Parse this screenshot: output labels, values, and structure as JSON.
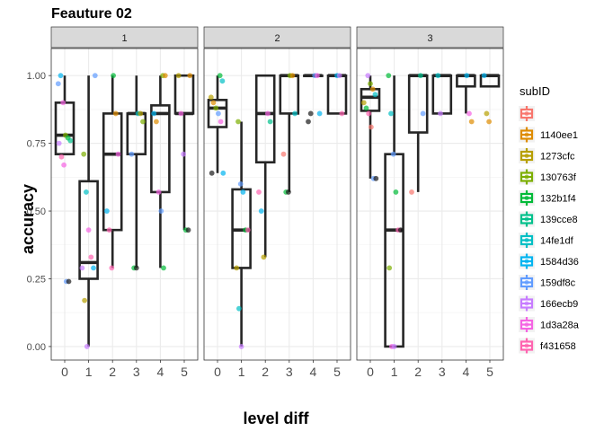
{
  "chart_data": {
    "type": "box",
    "title": "Feauture 02",
    "xlabel": "level diff",
    "ylabel": "accuracy",
    "x_ticks": [
      "0",
      "1",
      "2",
      "3",
      "4",
      "5"
    ],
    "y_ticks": [
      "0.00",
      "0.25",
      "0.50",
      "0.75",
      "1.00"
    ],
    "ylim": [
      -0.05,
      1.1
    ],
    "grid": true,
    "legend_title": "subID",
    "legend_position": "right",
    "legend": [
      {
        "name": "",
        "color": "#F8766D"
      },
      {
        "name": "1140ee1",
        "color": "#DE8C00"
      },
      {
        "name": "1273cfc",
        "color": "#B79F00"
      },
      {
        "name": "130763f",
        "color": "#7CAE00"
      },
      {
        "name": "132b1f4",
        "color": "#00BA38"
      },
      {
        "name": "139cce8",
        "color": "#00C08B"
      },
      {
        "name": "14fe1df",
        "color": "#00BFC4"
      },
      {
        "name": "1584d36",
        "color": "#00B4F0"
      },
      {
        "name": "159df8c",
        "color": "#619CFF"
      },
      {
        "name": "166ecb9",
        "color": "#C77CFF"
      },
      {
        "name": "1d3a28a",
        "color": "#F564E3"
      },
      {
        "name": "f431658",
        "color": "#FF64B0"
      }
    ],
    "facets": [
      {
        "label": "1",
        "boxes": [
          {
            "x": 0,
            "min": 0.71,
            "q1": 0.71,
            "median": 0.78,
            "q3": 0.9,
            "max": 1.0
          },
          {
            "x": 1,
            "min": 0.0,
            "q1": 0.25,
            "median": 0.31,
            "q3": 0.61,
            "max": 1.0
          },
          {
            "x": 2,
            "min": 0.29,
            "q1": 0.43,
            "median": 0.71,
            "q3": 0.86,
            "max": 1.0
          },
          {
            "x": 3,
            "min": 0.29,
            "q1": 0.71,
            "median": 0.86,
            "q3": 0.86,
            "max": 1.0
          },
          {
            "x": 4,
            "min": 0.29,
            "q1": 0.57,
            "median": 0.86,
            "q3": 0.89,
            "max": 1.0
          },
          {
            "x": 5,
            "min": 0.43,
            "q1": 0.86,
            "median": 0.86,
            "q3": 1.0,
            "max": 1.0
          }
        ],
        "points": [
          {
            "x": 0,
            "y": 0.97,
            "c": 8
          },
          {
            "x": 0,
            "y": 1.0,
            "c": 7
          },
          {
            "x": 0,
            "y": 0.9,
            "c": 10
          },
          {
            "x": 0,
            "y": 0.78,
            "c": 3
          },
          {
            "x": 0,
            "y": 0.77,
            "c": 4
          },
          {
            "x": 0,
            "y": 0.76,
            "c": 5
          },
          {
            "x": 0,
            "y": 0.75,
            "c": 9
          },
          {
            "x": 0,
            "y": 0.7,
            "c": 11
          },
          {
            "x": 0,
            "y": 0.67,
            "c": 10
          },
          {
            "x": 0,
            "y": 0.24,
            "c": 8
          },
          {
            "x": 0,
            "y": 0.24,
            "c": -1
          },
          {
            "x": 1,
            "y": 1.0,
            "c": 8
          },
          {
            "x": 1,
            "y": 0.71,
            "c": 3
          },
          {
            "x": 1,
            "y": 0.57,
            "c": 6
          },
          {
            "x": 1,
            "y": 0.43,
            "c": 10
          },
          {
            "x": 1,
            "y": 0.33,
            "c": 11
          },
          {
            "x": 1,
            "y": 0.29,
            "c": 7
          },
          {
            "x": 1,
            "y": 0.29,
            "c": 9
          },
          {
            "x": 1,
            "y": 0.17,
            "c": 2
          },
          {
            "x": 1,
            "y": 0.0,
            "c": 9
          },
          {
            "x": 2,
            "y": 1.0,
            "c": 4
          },
          {
            "x": 2,
            "y": 0.86,
            "c": 1
          },
          {
            "x": 2,
            "y": 0.71,
            "c": 10
          },
          {
            "x": 2,
            "y": 0.5,
            "c": 7
          },
          {
            "x": 2,
            "y": 0.43,
            "c": 11
          },
          {
            "x": 2,
            "y": 0.29,
            "c": 11
          },
          {
            "x": 3,
            "y": 0.86,
            "c": 6
          },
          {
            "x": 3,
            "y": 0.86,
            "c": 2
          },
          {
            "x": 3,
            "y": 0.83,
            "c": 3
          },
          {
            "x": 3,
            "y": 0.71,
            "c": 8
          },
          {
            "x": 3,
            "y": 0.29,
            "c": 4
          },
          {
            "x": 3,
            "y": 0.29,
            "c": -1
          },
          {
            "x": 4,
            "y": 1.0,
            "c": 3
          },
          {
            "x": 4,
            "y": 1.0,
            "c": 1
          },
          {
            "x": 4,
            "y": 0.86,
            "c": 7
          },
          {
            "x": 4,
            "y": 0.83,
            "c": 1
          },
          {
            "x": 4,
            "y": 0.57,
            "c": 10
          },
          {
            "x": 4,
            "y": 0.5,
            "c": 8
          },
          {
            "x": 4,
            "y": 0.29,
            "c": 4
          },
          {
            "x": 5,
            "y": 1.0,
            "c": 1
          },
          {
            "x": 5,
            "y": 1.0,
            "c": 2
          },
          {
            "x": 5,
            "y": 0.86,
            "c": 10
          },
          {
            "x": 5,
            "y": 0.71,
            "c": 9
          },
          {
            "x": 5,
            "y": 0.43,
            "c": 4
          },
          {
            "x": 5,
            "y": 0.43,
            "c": -1
          }
        ]
      },
      {
        "label": "2",
        "boxes": [
          {
            "x": 0,
            "min": 0.64,
            "q1": 0.81,
            "median": 0.88,
            "q3": 0.91,
            "max": 1.0
          },
          {
            "x": 1,
            "min": 0.0,
            "q1": 0.29,
            "median": 0.43,
            "q3": 0.58,
            "max": 0.83
          },
          {
            "x": 2,
            "min": 0.33,
            "q1": 0.68,
            "median": 0.86,
            "q3": 1.0,
            "max": 1.0
          },
          {
            "x": 3,
            "min": 0.57,
            "q1": 0.86,
            "median": 1.0,
            "q3": 1.0,
            "max": 1.0
          },
          {
            "x": 4,
            "min": 1.0,
            "q1": 1.0,
            "median": 1.0,
            "q3": 1.0,
            "max": 1.0
          },
          {
            "x": 5,
            "min": 0.86,
            "q1": 0.86,
            "median": 1.0,
            "q3": 1.0,
            "max": 1.0
          }
        ],
        "points": [
          {
            "x": 0,
            "y": 1.0,
            "c": 4
          },
          {
            "x": 0,
            "y": 0.98,
            "c": 6
          },
          {
            "x": 0,
            "y": 0.92,
            "c": 2
          },
          {
            "x": 0,
            "y": 0.9,
            "c": 1
          },
          {
            "x": 0,
            "y": 0.88,
            "c": 3
          },
          {
            "x": 0,
            "y": 0.86,
            "c": 8
          },
          {
            "x": 0,
            "y": 0.83,
            "c": 10
          },
          {
            "x": 0,
            "y": 0.64,
            "c": 7
          },
          {
            "x": 0,
            "y": 0.64,
            "c": -1
          },
          {
            "x": 1,
            "y": 0.83,
            "c": 3
          },
          {
            "x": 1,
            "y": 0.6,
            "c": 8
          },
          {
            "x": 1,
            "y": 0.57,
            "c": 7
          },
          {
            "x": 1,
            "y": 0.43,
            "c": 4
          },
          {
            "x": 1,
            "y": 0.43,
            "c": 11
          },
          {
            "x": 1,
            "y": 0.29,
            "c": 2
          },
          {
            "x": 1,
            "y": 0.14,
            "c": 6
          },
          {
            "x": 1,
            "y": 0.0,
            "c": 9
          },
          {
            "x": 2,
            "y": 0.86,
            "c": 10
          },
          {
            "x": 2,
            "y": 0.83,
            "c": 5
          },
          {
            "x": 2,
            "y": 0.57,
            "c": 11
          },
          {
            "x": 2,
            "y": 0.5,
            "c": 7
          },
          {
            "x": 2,
            "y": 0.33,
            "c": 2
          },
          {
            "x": 3,
            "y": 1.0,
            "c": 3
          },
          {
            "x": 3,
            "y": 1.0,
            "c": 1
          },
          {
            "x": 3,
            "y": 0.86,
            "c": 6
          },
          {
            "x": 3,
            "y": 0.71,
            "c": 0
          },
          {
            "x": 3,
            "y": 0.57,
            "c": 4
          },
          {
            "x": 3,
            "y": 0.57,
            "c": -1
          },
          {
            "x": 4,
            "y": 1.0,
            "c": 8
          },
          {
            "x": 4,
            "y": 1.0,
            "c": 10
          },
          {
            "x": 4,
            "y": 0.86,
            "c": 7
          },
          {
            "x": 4,
            "y": 0.83,
            "c": -1
          },
          {
            "x": 4,
            "y": 0.86,
            "c": -1
          },
          {
            "x": 5,
            "y": 1.0,
            "c": 7
          },
          {
            "x": 5,
            "y": 1.0,
            "c": 9
          },
          {
            "x": 5,
            "y": 0.86,
            "c": 11
          }
        ]
      },
      {
        "label": "3",
        "boxes": [
          {
            "x": 0,
            "min": 0.62,
            "q1": 0.87,
            "median": 0.92,
            "q3": 0.95,
            "max": 1.0
          },
          {
            "x": 1,
            "min": 0.0,
            "q1": 0.0,
            "median": 0.43,
            "q3": 0.71,
            "max": 1.0
          },
          {
            "x": 2,
            "min": 0.57,
            "q1": 0.79,
            "median": 1.0,
            "q3": 1.0,
            "max": 1.0
          },
          {
            "x": 3,
            "min": 0.86,
            "q1": 0.86,
            "median": 1.0,
            "q3": 1.0,
            "max": 1.0
          },
          {
            "x": 4,
            "min": 0.86,
            "q1": 0.96,
            "median": 1.0,
            "q3": 1.0,
            "max": 1.0
          },
          {
            "x": 5,
            "min": 0.96,
            "q1": 0.96,
            "median": 1.0,
            "q3": 1.0,
            "max": 1.0
          }
        ],
        "points": [
          {
            "x": 0,
            "y": 1.0,
            "c": 9
          },
          {
            "x": 0,
            "y": 0.97,
            "c": 3
          },
          {
            "x": 0,
            "y": 0.95,
            "c": 1
          },
          {
            "x": 0,
            "y": 0.93,
            "c": 6
          },
          {
            "x": 0,
            "y": 0.9,
            "c": 2
          },
          {
            "x": 0,
            "y": 0.88,
            "c": 4
          },
          {
            "x": 0,
            "y": 0.86,
            "c": 11
          },
          {
            "x": 0,
            "y": 0.81,
            "c": 0
          },
          {
            "x": 0,
            "y": 0.62,
            "c": 8
          },
          {
            "x": 0,
            "y": 0.62,
            "c": -1
          },
          {
            "x": 1,
            "y": 1.0,
            "c": 4
          },
          {
            "x": 1,
            "y": 0.86,
            "c": 6
          },
          {
            "x": 1,
            "y": 0.71,
            "c": 8
          },
          {
            "x": 1,
            "y": 0.57,
            "c": 4
          },
          {
            "x": 1,
            "y": 0.43,
            "c": 11
          },
          {
            "x": 1,
            "y": 0.43,
            "c": -1
          },
          {
            "x": 1,
            "y": 0.29,
            "c": 3
          },
          {
            "x": 1,
            "y": 0.0,
            "c": 10
          },
          {
            "x": 1,
            "y": 0.0,
            "c": 9
          },
          {
            "x": 2,
            "y": 1.0,
            "c": 5
          },
          {
            "x": 2,
            "y": 0.86,
            "c": 8
          },
          {
            "x": 2,
            "y": 0.57,
            "c": 0
          },
          {
            "x": 3,
            "y": 1.0,
            "c": 6
          },
          {
            "x": 3,
            "y": 0.86,
            "c": 9
          },
          {
            "x": 4,
            "y": 1.0,
            "c": 7
          },
          {
            "x": 4,
            "y": 0.86,
            "c": 10
          },
          {
            "x": 4,
            "y": 0.83,
            "c": 1
          },
          {
            "x": 5,
            "y": 1.0,
            "c": 7
          },
          {
            "x": 5,
            "y": 0.86,
            "c": 2
          },
          {
            "x": 5,
            "y": 0.83,
            "c": 1
          }
        ]
      }
    ]
  }
}
